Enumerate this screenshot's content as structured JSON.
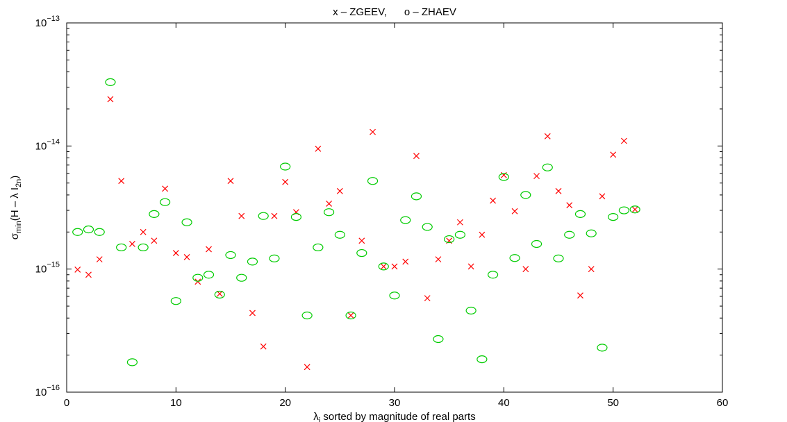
{
  "chart_data": {
    "type": "scatter",
    "title": "x – ZGEEV,      o – ZHAEV",
    "xlabel": {
      "main": "λ",
      "sub": "j",
      "rest": " sorted by magnitude of real parts"
    },
    "ylabel": {
      "sigma": "σ",
      "sigma_sub": "min",
      "paren_open": "(H – λ I",
      "I_sub": "2n",
      "paren_close": ")"
    },
    "xlim": [
      0,
      60
    ],
    "ylim": [
      1e-16,
      1e-13
    ],
    "yscale": "log",
    "grid": false,
    "xticks": [
      0,
      10,
      20,
      30,
      40,
      50,
      60
    ],
    "xtick_labels": [
      "0",
      "10",
      "20",
      "30",
      "40",
      "50",
      "60"
    ],
    "yticks": [
      {
        "value": 1e-16,
        "base": "10",
        "exp": "−16"
      },
      {
        "value": 1e-15,
        "base": "10",
        "exp": "−15"
      },
      {
        "value": 1e-14,
        "base": "10",
        "exp": "−14"
      },
      {
        "value": 1e-13,
        "base": "10",
        "exp": "−13"
      }
    ],
    "colors": {
      "zgeev": "#ff0000",
      "zhaev": "#00cc00"
    },
    "series": [
      {
        "name": "ZGEEV",
        "marker": "x",
        "x": [
          1,
          2,
          3,
          4,
          5,
          6,
          7,
          8,
          9,
          10,
          11,
          12,
          13,
          14,
          15,
          16,
          17,
          18,
          19,
          20,
          21,
          22,
          23,
          24,
          25,
          26,
          27,
          28,
          29,
          30,
          31,
          32,
          33,
          34,
          35,
          36,
          37,
          38,
          39,
          40,
          41,
          42,
          43,
          44,
          45,
          46,
          47,
          48,
          49,
          50,
          51,
          52
        ],
        "y": [
          9.9e-16,
          9e-16,
          1.2e-15,
          2.4e-14,
          5.2e-15,
          1.6e-15,
          2e-15,
          1.7e-15,
          4.5e-15,
          1.35e-15,
          1.25e-15,
          7.9e-16,
          1.45e-15,
          6.3e-16,
          5.2e-15,
          2.7e-15,
          4.4e-16,
          2.35e-16,
          2.7e-15,
          5.1e-15,
          2.9e-15,
          1.6e-16,
          9.5e-15,
          3.4e-15,
          4.3e-15,
          4.2e-16,
          1.7e-15,
          1.3e-14,
          1.05e-15,
          1.05e-15,
          1.15e-15,
          8.3e-15,
          5.8e-16,
          1.2e-15,
          1.7e-15,
          2.4e-15,
          1.05e-15,
          1.9e-15,
          3.6e-15,
          5.8e-15,
          2.95e-15,
          1e-15,
          5.7e-15,
          1.2e-14,
          4.3e-15,
          3.3e-15,
          6.1e-16,
          1e-15,
          3.9e-15,
          8.5e-15,
          1.1e-14,
          3.05e-15
        ]
      },
      {
        "name": "ZHAEV",
        "marker": "o",
        "x": [
          1,
          2,
          3,
          4,
          5,
          6,
          7,
          8,
          9,
          10,
          11,
          12,
          13,
          14,
          15,
          16,
          17,
          18,
          19,
          20,
          21,
          22,
          23,
          24,
          25,
          26,
          27,
          28,
          29,
          30,
          31,
          32,
          33,
          34,
          35,
          36,
          37,
          38,
          39,
          40,
          41,
          42,
          43,
          44,
          45,
          46,
          47,
          48,
          49,
          50,
          51,
          52
        ],
        "y": [
          2e-15,
          2.1e-15,
          2e-15,
          3.3e-14,
          1.5e-15,
          1.75e-16,
          1.5e-15,
          2.8e-15,
          3.5e-15,
          5.5e-16,
          2.4e-15,
          8.5e-16,
          9e-16,
          6.2e-16,
          1.3e-15,
          8.5e-16,
          1.15e-15,
          2.7e-15,
          1.22e-15,
          6.8e-15,
          2.65e-15,
          4.2e-16,
          1.5e-15,
          2.9e-15,
          1.9e-15,
          4.2e-16,
          1.35e-15,
          5.2e-15,
          1.05e-15,
          6.1e-16,
          2.5e-15,
          3.9e-15,
          2.2e-15,
          2.7e-16,
          1.75e-15,
          1.9e-15,
          4.6e-16,
          1.85e-16,
          9e-16,
          5.6e-15,
          1.23e-15,
          4e-15,
          1.6e-15,
          6.7e-15,
          1.22e-15,
          1.9e-15,
          2.8e-15,
          1.95e-15,
          2.3e-16,
          2.65e-15,
          3e-15,
          3.05e-15
        ]
      }
    ]
  }
}
